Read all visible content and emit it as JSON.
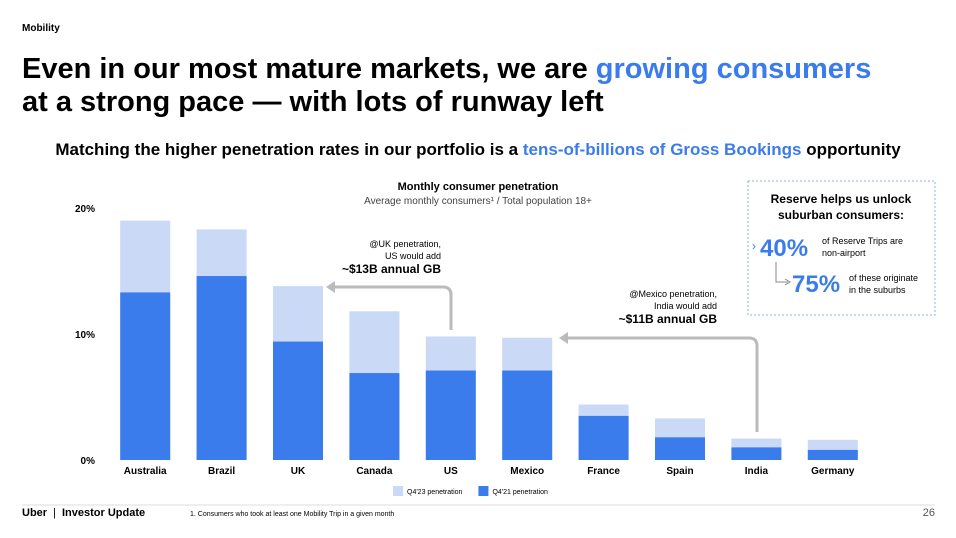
{
  "header": {
    "section": "Mobility",
    "title_line1_a": "Even in our most mature markets, we are ",
    "title_line1_b": "growing consumers",
    "title_line2": "at a strong pace — with lots of runway left",
    "subtitle_a": "Matching the higher penetration rates in our portfolio is a ",
    "subtitle_b": "tens-of-billions of Gross Bookings",
    "subtitle_c": " opportunity"
  },
  "callout": {
    "title_line1": "Reserve helps us unlock",
    "title_line2": "suburban consumers:",
    "stat1": "40%",
    "stat1_line1": "of Reserve Trips are",
    "stat1_line2": "non-airport",
    "stat2": "75%",
    "stat2_line1": "of these originate",
    "stat2_line2": "in the suburbs"
  },
  "footer": {
    "brand": "Uber",
    "label": "Investor Update",
    "footnote": "1. Consumers who took at least one Mobility Trip in a given month",
    "page": "26"
  },
  "chart_data": {
    "type": "bar",
    "title": "Monthly consumer penetration",
    "subtitle": "Average monthly consumers¹ / Total population 18+",
    "categories": [
      "Australia",
      "Brazil",
      "UK",
      "Canada",
      "US",
      "Mexico",
      "France",
      "Spain",
      "India",
      "Germany"
    ],
    "series": [
      {
        "name": "Q4'23 penetration",
        "color": "#c9d9f6",
        "values": [
          19.0,
          18.3,
          13.8,
          11.8,
          9.8,
          9.7,
          4.4,
          3.3,
          1.7,
          1.6
        ]
      },
      {
        "name": "Q4'21 penetration",
        "color": "#3b7cec",
        "values": [
          13.3,
          14.6,
          9.4,
          6.9,
          7.1,
          7.1,
          3.5,
          1.8,
          1.0,
          0.8
        ]
      }
    ],
    "ylim": [
      0,
      20
    ],
    "yticks": [
      {
        "value": 0,
        "label": "0%"
      },
      {
        "value": 10,
        "label": "10%"
      },
      {
        "value": 20,
        "label": "20%"
      }
    ],
    "grid": false,
    "annotations": [
      {
        "lines": [
          "@UK penetration,",
          "US would add",
          "~$13B annual GB"
        ]
      },
      {
        "lines": [
          "@Mexico penetration,",
          "India would add",
          "~$11B annual GB"
        ]
      }
    ]
  }
}
